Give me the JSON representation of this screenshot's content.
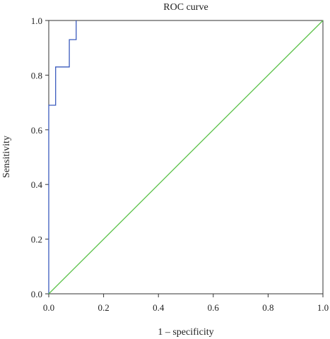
{
  "chart_data": {
    "type": "line",
    "title": "ROC curve",
    "xlabel": "1 – specificity",
    "ylabel": "Sensitivity",
    "xlim": [
      0.0,
      1.0
    ],
    "ylim": [
      0.0,
      1.0
    ],
    "x_ticks": [
      "0.0",
      "0.2",
      "0.4",
      "0.6",
      "0.8",
      "1.0"
    ],
    "y_ticks": [
      "0.0",
      "0.2",
      "0.4",
      "0.6",
      "0.8",
      "1.0"
    ],
    "grid": false,
    "legend": "none",
    "series": [
      {
        "style": "step",
        "color": "#3b5bbd",
        "x": [
          0.0,
          0.0,
          0.025,
          0.025,
          0.075,
          0.075,
          0.1,
          0.1
        ],
        "y": [
          0.0,
          0.69,
          0.69,
          0.83,
          0.83,
          0.93,
          0.93,
          1.0
        ]
      },
      {
        "style": "reference",
        "color": "#5cc24a",
        "x": [
          0.0,
          1.0
        ],
        "y": [
          0.0,
          1.0
        ]
      }
    ]
  }
}
